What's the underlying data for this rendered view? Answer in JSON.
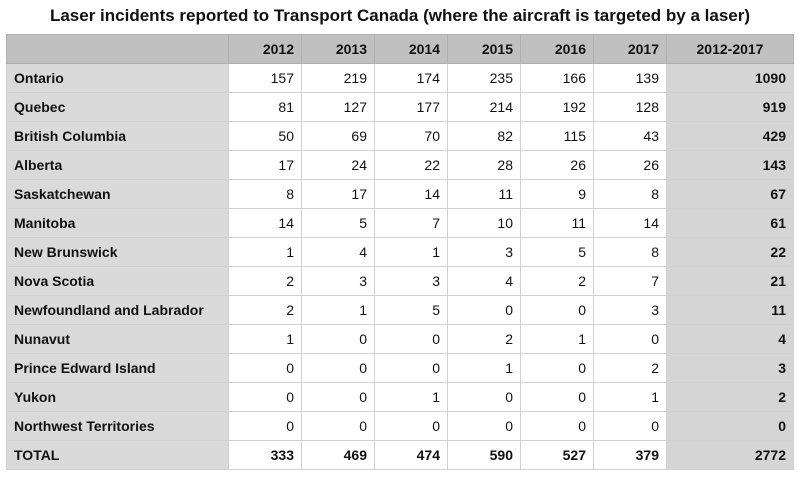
{
  "chart_data": {
    "type": "table",
    "title": "Laser incidents reported to Transport Canada (where the aircraft is targeted by a laser)",
    "columns": [
      "",
      "2012",
      "2013",
      "2014",
      "2015",
      "2016",
      "2017",
      "2012-2017"
    ],
    "rows": [
      {
        "label": "Ontario",
        "values": [
          157,
          219,
          174,
          235,
          166,
          139
        ],
        "total": 1090
      },
      {
        "label": "Quebec",
        "values": [
          81,
          127,
          177,
          214,
          192,
          128
        ],
        "total": 919
      },
      {
        "label": "British Columbia",
        "values": [
          50,
          69,
          70,
          82,
          115,
          43
        ],
        "total": 429
      },
      {
        "label": "Alberta",
        "values": [
          17,
          24,
          22,
          28,
          26,
          26
        ],
        "total": 143
      },
      {
        "label": "Saskatchewan",
        "values": [
          8,
          17,
          14,
          11,
          9,
          8
        ],
        "total": 67
      },
      {
        "label": "Manitoba",
        "values": [
          14,
          5,
          7,
          10,
          11,
          14
        ],
        "total": 61
      },
      {
        "label": "New Brunswick",
        "values": [
          1,
          4,
          1,
          3,
          5,
          8
        ],
        "total": 22
      },
      {
        "label": "Nova Scotia",
        "values": [
          2,
          3,
          3,
          4,
          2,
          7
        ],
        "total": 21
      },
      {
        "label": "Newfoundland and Labrador",
        "values": [
          2,
          1,
          5,
          0,
          0,
          3
        ],
        "total": 11
      },
      {
        "label": "Nunavut",
        "values": [
          1,
          0,
          0,
          2,
          1,
          0
        ],
        "total": 4
      },
      {
        "label": "Prince Edward Island",
        "values": [
          0,
          0,
          0,
          1,
          0,
          2
        ],
        "total": 3
      },
      {
        "label": "Yukon",
        "values": [
          0,
          0,
          1,
          0,
          0,
          1
        ],
        "total": 2
      },
      {
        "label": "Northwest Territories",
        "values": [
          0,
          0,
          0,
          0,
          0,
          0
        ],
        "total": 0
      }
    ],
    "total_row": {
      "label": "TOTAL",
      "values": [
        333,
        469,
        474,
        590,
        527,
        379
      ],
      "total": 2772
    }
  }
}
